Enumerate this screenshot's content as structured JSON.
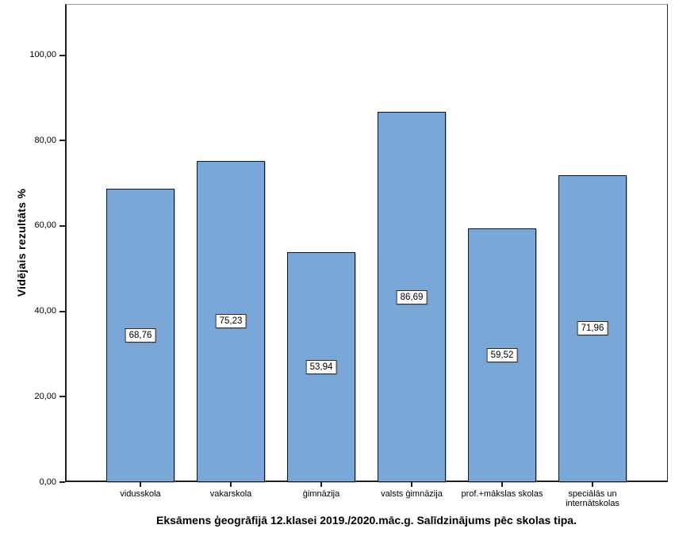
{
  "chart_data": {
    "type": "bar",
    "title": "Eksāmens ģeogrāfijā 12.klasei 2019./2020.māc.g. Salīdzinājums pēc skolas tipa.",
    "xlabel": "",
    "ylabel": "Vidējais rezultāts %",
    "categories": [
      "vidusskola",
      "vakarskola",
      "ģimnāzija",
      "valsts ģimnāzija",
      "prof.+mākslas skolas",
      "speciālās un internātskolas"
    ],
    "values": [
      68.76,
      75.23,
      53.94,
      86.69,
      59.52,
      71.96
    ],
    "value_labels": [
      "68,76",
      "75,23",
      "53,94",
      "86,69",
      "59,52",
      "71,96"
    ],
    "ylim": [
      0,
      112
    ],
    "yticks": [
      0,
      20,
      40,
      60,
      80,
      100
    ],
    "ytick_labels": [
      "0,00",
      "20,00",
      "40,00",
      "60,00",
      "80,00",
      "100,00"
    ],
    "grid": false,
    "legend": "none",
    "bar_color": "#79A7D7",
    "bar_border_color": "#10161e",
    "value_label_bg": "#ffffff",
    "value_label_border": "#2a2a2a"
  }
}
